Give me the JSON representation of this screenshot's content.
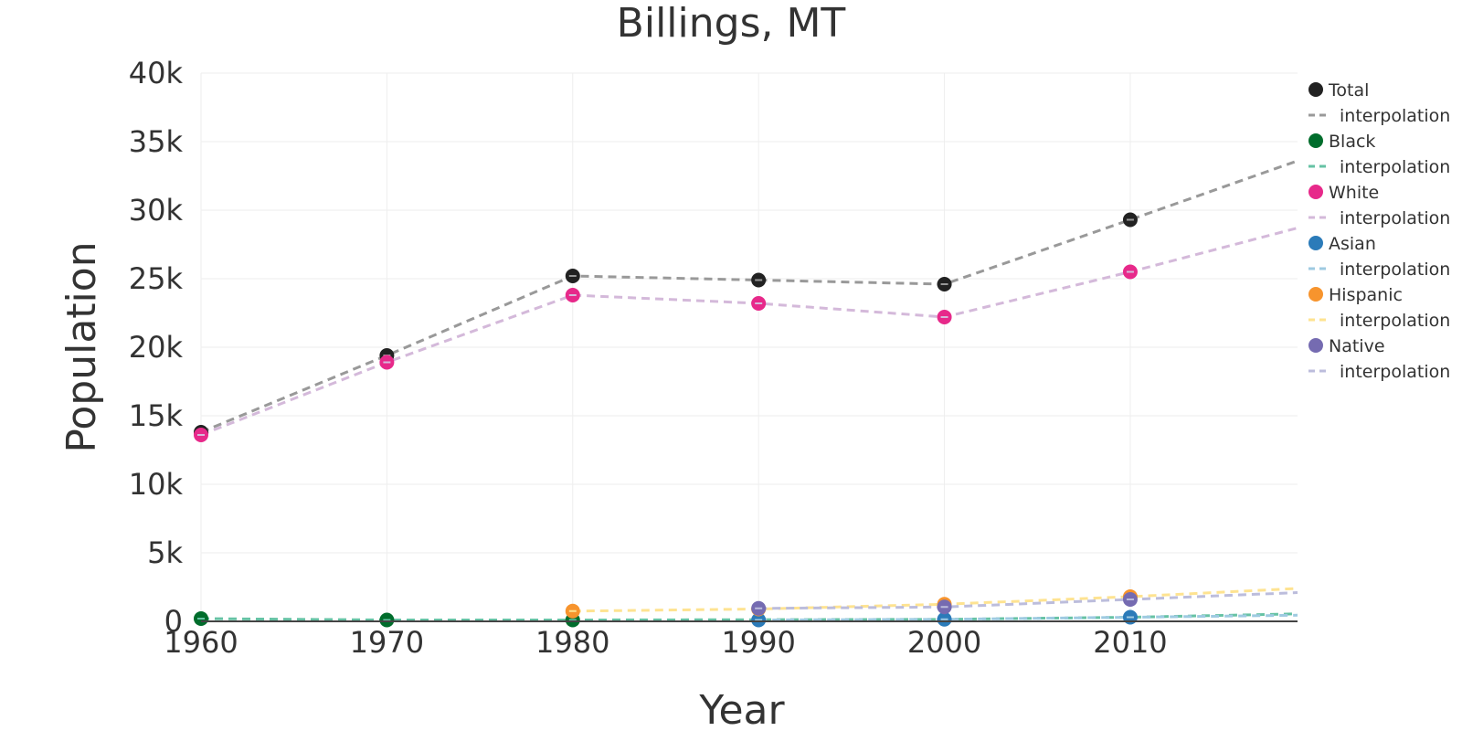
{
  "chart_data": {
    "type": "line",
    "title": "Billings, MT",
    "xlabel": "Year",
    "ylabel": "Population",
    "xlim": [
      1960,
      2019
    ],
    "ylim": [
      0,
      40000
    ],
    "x_ticks": [
      "1960",
      "1970",
      "1980",
      "1990",
      "2000",
      "2010"
    ],
    "y_ticks": [
      "0",
      "5k",
      "10k",
      "15k",
      "20k",
      "25k",
      "30k",
      "35k",
      "40k"
    ],
    "grid": true,
    "legend_position": "top-right",
    "series": [
      {
        "name": "Total",
        "color": "#222222",
        "interp_color": "#999999",
        "interp_name": "interpolation",
        "points": [
          [
            1960,
            13800
          ],
          [
            1970,
            19400
          ],
          [
            1980,
            25200
          ],
          [
            1990,
            24900
          ],
          [
            2000,
            24600
          ],
          [
            2010,
            29300
          ]
        ],
        "interp": [
          [
            1960,
            13800
          ],
          [
            1970,
            19400
          ],
          [
            1980,
            25200
          ],
          [
            1990,
            24900
          ],
          [
            2000,
            24600
          ],
          [
            2010,
            29300
          ],
          [
            2019,
            33600
          ]
        ]
      },
      {
        "name": "Black",
        "color": "#006d2c",
        "interp_color": "#66c2a4",
        "interp_name": "interpolation",
        "points": [
          [
            1960,
            200
          ],
          [
            1970,
            100
          ],
          [
            1980,
            100
          ]
        ],
        "interp": [
          [
            1960,
            200
          ],
          [
            1970,
            100
          ],
          [
            1980,
            100
          ],
          [
            1990,
            120
          ],
          [
            2000,
            150
          ],
          [
            2010,
            300
          ],
          [
            2019,
            550
          ]
        ]
      },
      {
        "name": "White",
        "color": "#e7298a",
        "interp_color": "#d4b9da",
        "interp_name": "interpolation",
        "points": [
          [
            1960,
            13600
          ],
          [
            1970,
            18900
          ],
          [
            1980,
            23800
          ],
          [
            1990,
            23200
          ],
          [
            2000,
            22200
          ],
          [
            2010,
            25500
          ]
        ],
        "interp": [
          [
            1960,
            13600
          ],
          [
            1970,
            18900
          ],
          [
            1980,
            23800
          ],
          [
            1990,
            23200
          ],
          [
            2000,
            22200
          ],
          [
            2010,
            25500
          ],
          [
            2019,
            28700
          ]
        ]
      },
      {
        "name": "Asian",
        "color": "#2b7bb9",
        "interp_color": "#9ecae1",
        "interp_name": "interpolation",
        "points": [
          [
            1990,
            100
          ],
          [
            2000,
            150
          ],
          [
            2010,
            300
          ]
        ],
        "interp": [
          [
            1990,
            100
          ],
          [
            2000,
            150
          ],
          [
            2010,
            300
          ],
          [
            2019,
            450
          ]
        ]
      },
      {
        "name": "Hispanic",
        "color": "#f7942d",
        "interp_color": "#fee391",
        "interp_name": "interpolation",
        "points": [
          [
            1980,
            750
          ],
          [
            1990,
            900
          ],
          [
            2000,
            1250
          ],
          [
            2010,
            1800
          ]
        ],
        "interp": [
          [
            1980,
            750
          ],
          [
            1990,
            900
          ],
          [
            2000,
            1250
          ],
          [
            2010,
            1800
          ],
          [
            2019,
            2400
          ]
        ]
      },
      {
        "name": "Native",
        "color": "#756bb1",
        "interp_color": "#bcbddc",
        "interp_name": "interpolation",
        "points": [
          [
            1990,
            950
          ],
          [
            2000,
            1050
          ],
          [
            2010,
            1600
          ]
        ],
        "interp": [
          [
            1990,
            950
          ],
          [
            2000,
            1050
          ],
          [
            2010,
            1600
          ],
          [
            2019,
            2100
          ]
        ]
      }
    ]
  }
}
